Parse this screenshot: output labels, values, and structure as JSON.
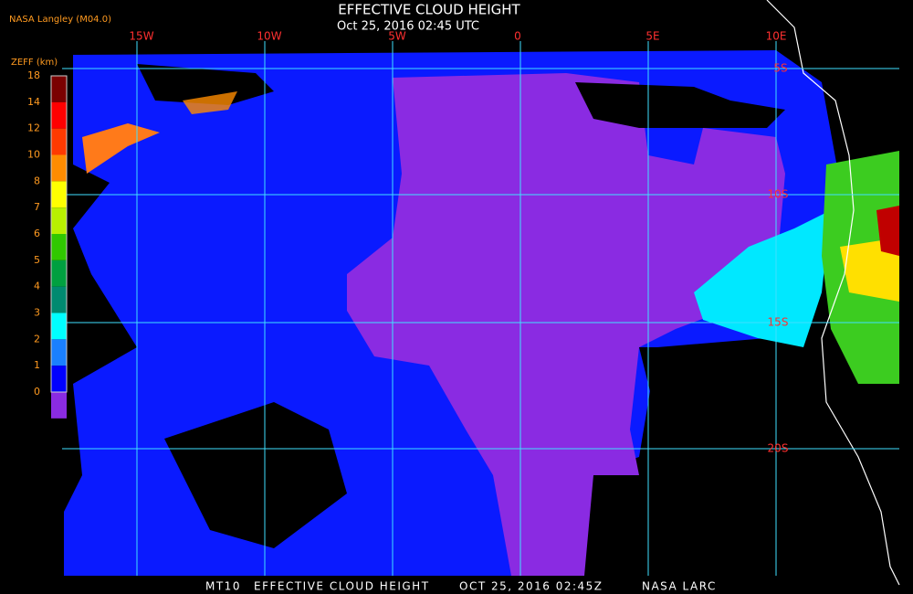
{
  "header": {
    "title": "EFFECTIVE CLOUD HEIGHT",
    "subtitle": "Oct 25, 2016 02:45 UTC",
    "source": "NASA Langley (M04.0)"
  },
  "colorbar": {
    "label": "ZEFF (km)",
    "ticks": [
      "18",
      "14",
      "12",
      "10",
      "8",
      "7",
      "6",
      "5",
      "4",
      "3",
      "2",
      "1",
      "0"
    ],
    "colors": [
      "#7a0000",
      "#ff0000",
      "#ff3a00",
      "#ff8c00",
      "#ffff00",
      "#b8f000",
      "#30c800",
      "#00a040",
      "#008a70",
      "#00ffff",
      "#1a80ff",
      "#0000ff",
      "#8a2be2"
    ]
  },
  "longitudes": [
    "15W",
    "10W",
    "5W",
    "0",
    "5E",
    "10E"
  ],
  "latitudes": [
    "5S",
    "10S",
    "15S",
    "20S"
  ],
  "footer": [
    "MT10",
    "EFFECTIVE CLOUD HEIGHT",
    "OCT 25, 2016 02:45Z",
    "NASA LARC"
  ]
}
